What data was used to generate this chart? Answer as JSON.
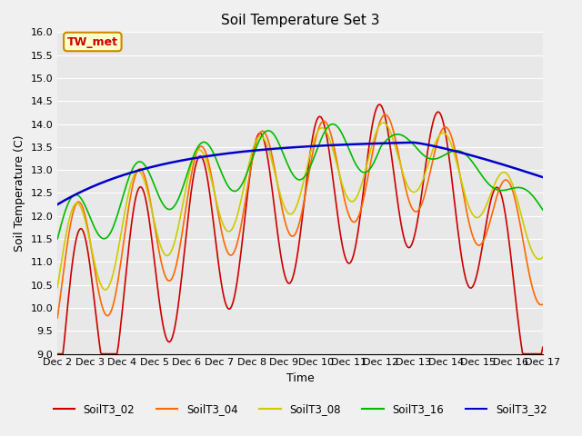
{
  "title": "Soil Temperature Set 3",
  "xlabel": "Time",
  "ylabel": "Soil Temperature (C)",
  "ylim": [
    9.0,
    16.0
  ],
  "yticks": [
    9.0,
    9.5,
    10.0,
    10.5,
    11.0,
    11.5,
    12.0,
    12.5,
    13.0,
    13.5,
    14.0,
    14.5,
    15.0,
    15.5,
    16.0
  ],
  "xtick_labels": [
    "Dec 2",
    "Dec 3",
    "Dec 4",
    "Dec 5",
    "Dec 6",
    "Dec 7",
    "Dec 8",
    "Dec 9",
    "Dec 10",
    "Dec 11",
    "Dec 12",
    "Dec 13",
    "Dec 14",
    "Dec 15",
    "Dec 16",
    "Dec 17"
  ],
  "series": {
    "SoilT3_02": {
      "color": "#cc0000",
      "lw": 1.2
    },
    "SoilT3_04": {
      "color": "#ff6600",
      "lw": 1.2
    },
    "SoilT3_08": {
      "color": "#cccc00",
      "lw": 1.2
    },
    "SoilT3_16": {
      "color": "#00bb00",
      "lw": 1.2
    },
    "SoilT3_32": {
      "color": "#0000cc",
      "lw": 1.8
    }
  },
  "annotation_label": "TW_met",
  "annotation_color": "#cc0000",
  "annotation_bg": "#ffffcc",
  "annotation_border": "#cc8800",
  "background_color": "#e8e8e8",
  "plot_bg": "#e8e8e8"
}
